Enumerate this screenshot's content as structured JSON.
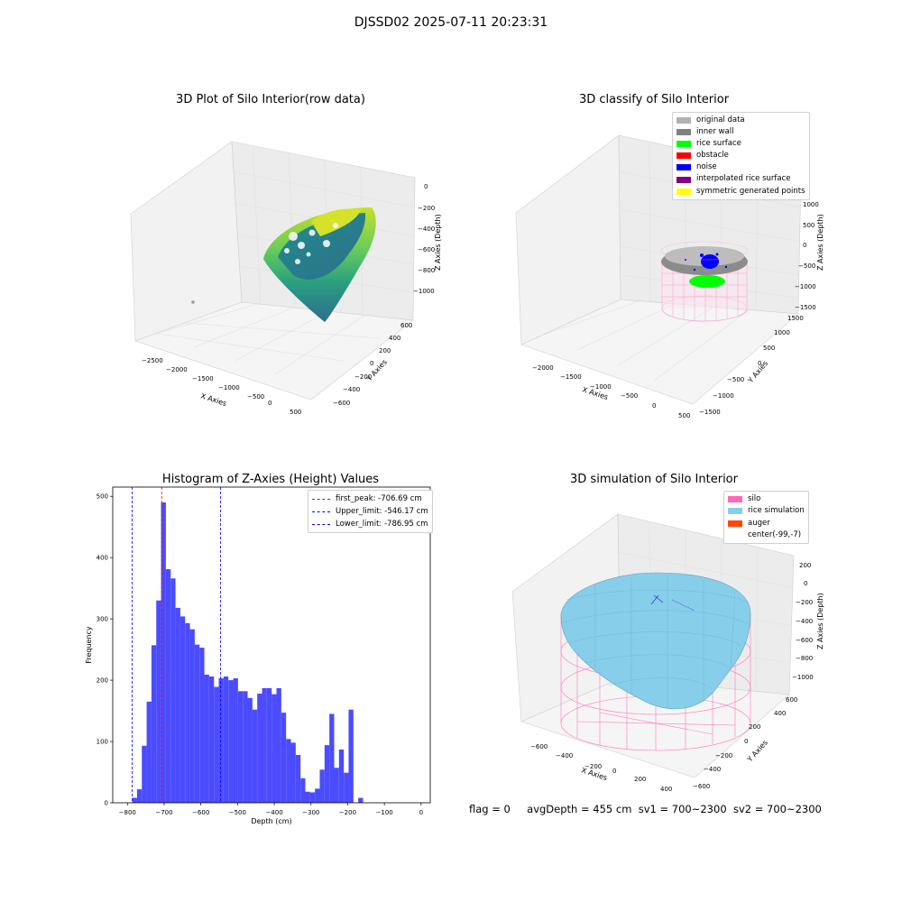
{
  "suptitle": "DJSSD02 2025-07-11 20:23:31",
  "panels": {
    "raw": {
      "title": "3D Plot of Silo Interior(row data)",
      "xlabel": "X Axies",
      "ylabel": "Y Axies",
      "zlabel": "Z Axies (Depth)",
      "xticks": [
        "−2500",
        "−2000",
        "−1500",
        "−1000",
        "−500",
        "0",
        "500"
      ],
      "yticks": [
        "−600",
        "−400",
        "−200",
        "0",
        "200",
        "400",
        "600"
      ],
      "zticks": [
        "0",
        "−200",
        "−400",
        "−600",
        "−800",
        "−1000"
      ]
    },
    "classify": {
      "title": "3D classify of Silo Interior",
      "xlabel": "X Axies",
      "ylabel": "Y Axies",
      "zlabel": "Z Axies (Depth)",
      "xticks": [
        "−2000",
        "−1500",
        "−1000",
        "−500",
        "0",
        "500"
      ],
      "yticks": [
        "−1500",
        "−1000",
        "−500",
        "0",
        "500",
        "1000",
        "1500"
      ],
      "zticks": [
        "1000",
        "500",
        "0",
        "−500",
        "−1000",
        "−1500"
      ],
      "legend": [
        {
          "label": "original data",
          "color": "#b3b3b3"
        },
        {
          "label": "inner wall",
          "color": "#808080"
        },
        {
          "label": "rice surface",
          "color": "#00ff00"
        },
        {
          "label": "obstacle",
          "color": "#ff0000"
        },
        {
          "label": "noise",
          "color": "#0000ff"
        },
        {
          "label": "interpolated rice surface",
          "color": "#800080"
        },
        {
          "label": "symmetric generated points",
          "color": "#ffff00"
        }
      ]
    },
    "simulation": {
      "title": "3D simulation of Silo Interior",
      "xlabel": "X Axies",
      "ylabel": "Y Axies",
      "zlabel": "Z Axies (Depth)",
      "xticks": [
        "−600",
        "−400",
        "−200",
        "0",
        "200",
        "400"
      ],
      "yticks": [
        "−600",
        "−400",
        "−200",
        "0",
        "200",
        "400",
        "600"
      ],
      "zticks": [
        "200",
        "0",
        "−200",
        "−400",
        "−600",
        "−800",
        "−1000"
      ],
      "legend": [
        {
          "label": "silo",
          "color": "#ff69b4"
        },
        {
          "label": "rice simulation",
          "color": "#87ceeb"
        },
        {
          "label": "auger",
          "color": "#ff4500"
        },
        {
          "label": "center(-99,-7)",
          "color": "#ffffff"
        }
      ]
    }
  },
  "chart_data": {
    "type": "bar",
    "title": "Histogram of Z-Axies (Height) Values",
    "xlabel": "Depth (cm)",
    "ylabel": "Frequency",
    "xlim": [
      -840,
      25
    ],
    "ylim": [
      0,
      515
    ],
    "xticks": [
      -800,
      -700,
      -600,
      -500,
      -400,
      -300,
      -200,
      -100,
      0
    ],
    "yticks": [
      0,
      100,
      200,
      300,
      400,
      500
    ],
    "bar_color": "#4b4bff",
    "bin_start": -786.95,
    "bin_width": 13.1,
    "values": [
      8,
      22,
      93,
      165,
      257,
      330,
      490,
      381,
      366,
      318,
      304,
      293,
      283,
      258,
      253,
      209,
      206,
      189,
      203,
      206,
      200,
      203,
      182,
      182,
      171,
      152,
      178,
      187,
      187,
      177,
      187,
      147,
      104,
      98,
      78,
      40,
      18,
      17,
      23,
      54,
      94,
      145,
      57,
      87,
      49,
      152,
      0,
      8
    ],
    "lines": [
      {
        "label": "first_peak: -706.69 cm",
        "value": -706.69,
        "color": "#ff0000"
      },
      {
        "label": "Upper_limit: -546.17 cm",
        "value": -546.17,
        "color": "#0000ff"
      },
      {
        "label": "Lower_limit: -786.95 cm",
        "value": -786.95,
        "color": "#0000ff"
      }
    ]
  },
  "footer": {
    "flag": "flag = 0",
    "avg": "avgDepth = 455 cm",
    "sv1": "sv1 = 700~2300",
    "sv2": "sv2 = 700~2300"
  }
}
